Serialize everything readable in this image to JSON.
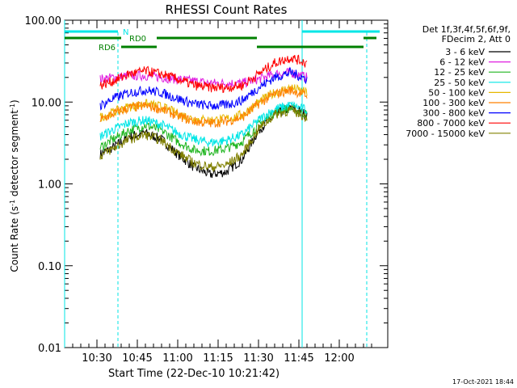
{
  "chart_data": {
    "type": "line",
    "title": "RHESSI Count Rates",
    "xlabel": "Start Time (22-Dec-10 10:21:42)",
    "ylabel_main": "Count Rate (s",
    "ylabel_sup1": "-1",
    "ylabel_mid": " detector segment",
    "ylabel_sup2": "-1",
    "ylabel_end": ")",
    "y_scale": "log",
    "ylim": [
      0.01,
      100
    ],
    "xlim_minutes": [
      10.3,
      12.3
    ],
    "x_ticks": [
      {
        "label": "10:30",
        "value": 10.5
      },
      {
        "label": "10:45",
        "value": 10.75
      },
      {
        "label": "11:00",
        "value": 11.0
      },
      {
        "label": "11:15",
        "value": 11.25
      },
      {
        "label": "11:30",
        "value": 11.5
      },
      {
        "label": "11:45",
        "value": 11.75
      },
      {
        "label": "12:00",
        "value": 12.0
      }
    ],
    "y_ticks": [
      {
        "label": "100.00",
        "value": 100
      },
      {
        "label": "10.00",
        "value": 10
      },
      {
        "label": "1.00",
        "value": 1
      },
      {
        "label": "0.10",
        "value": 0.1
      },
      {
        "label": "0.01",
        "value": 0.01
      }
    ],
    "legend_header_line1": "Det 1f,3f,4f,5f,6f,9f,",
    "legend_header_line2": "FDecim 2, Att 0",
    "legend_position": "right",
    "series": [
      {
        "name": "3 - 6 keV",
        "color": "#000000",
        "x": [
          10.52,
          10.6,
          10.7,
          10.8,
          10.9,
          11.0,
          11.1,
          11.2,
          11.3,
          11.4,
          11.5,
          11.6,
          11.7,
          11.8
        ],
        "values": [
          2.3,
          2.8,
          3.8,
          4.2,
          3.5,
          2.3,
          1.6,
          1.3,
          1.4,
          2.0,
          4.5,
          7.0,
          8.5,
          7.0
        ]
      },
      {
        "name": "6 - 12 keV",
        "color": "#e01ee0",
        "x": [
          10.52,
          10.6,
          10.7,
          10.8,
          10.9,
          11.0,
          11.1,
          11.2,
          11.3,
          11.4,
          11.5,
          11.6,
          11.7,
          11.8
        ],
        "values": [
          19,
          20,
          21,
          21,
          20,
          19,
          18,
          17,
          17,
          17,
          19,
          22,
          23,
          20
        ]
      },
      {
        "name": "12 - 25 keV",
        "color": "#1fb51f",
        "x": [
          10.52,
          10.6,
          10.7,
          10.8,
          10.9,
          11.0,
          11.1,
          11.2,
          11.3,
          11.4,
          11.5,
          11.6,
          11.7,
          11.8
        ],
        "values": [
          2.8,
          3.5,
          4.5,
          5.2,
          4.5,
          3.3,
          2.6,
          2.5,
          2.7,
          3.3,
          5.2,
          7.5,
          8.5,
          7.0
        ]
      },
      {
        "name": "25 - 50 keV",
        "color": "#00e6e6",
        "x": [
          10.52,
          10.6,
          10.7,
          10.8,
          10.9,
          11.0,
          11.1,
          11.2,
          11.3,
          11.4,
          11.5,
          11.6,
          11.7,
          11.8
        ],
        "values": [
          3.8,
          4.6,
          5.6,
          6.0,
          5.3,
          4.2,
          3.5,
          3.2,
          3.4,
          4.0,
          6.0,
          8.2,
          9.2,
          8.0
        ]
      },
      {
        "name": "50 - 100 keV",
        "color": "#e6b800",
        "x": [
          10.52,
          10.6,
          10.7,
          10.8,
          10.9,
          11.0,
          11.1,
          11.2,
          11.3,
          11.4,
          11.5,
          11.6,
          11.7,
          11.8
        ],
        "values": [
          6.5,
          7.5,
          8.8,
          9.5,
          8.8,
          7.2,
          6.2,
          6.0,
          6.2,
          7.0,
          10.0,
          13.0,
          15.0,
          13.0
        ]
      },
      {
        "name": "100 - 300 keV",
        "color": "#ff8000",
        "x": [
          10.52,
          10.6,
          10.7,
          10.8,
          10.9,
          11.0,
          11.1,
          11.2,
          11.3,
          11.4,
          11.5,
          11.6,
          11.7,
          11.8
        ],
        "values": [
          6.0,
          7.2,
          8.5,
          9.0,
          8.2,
          6.8,
          5.8,
          5.5,
          5.8,
          6.5,
          9.5,
          12.5,
          14.0,
          12.0
        ]
      },
      {
        "name": "300 - 800 keV",
        "color": "#0000ff",
        "x": [
          10.52,
          10.6,
          10.7,
          10.8,
          10.9,
          11.0,
          11.1,
          11.2,
          11.3,
          11.4,
          11.5,
          11.6,
          11.7,
          11.8
        ],
        "values": [
          9.0,
          11.0,
          13.0,
          14.0,
          13.0,
          11.0,
          9.5,
          9.0,
          9.2,
          10.5,
          15.0,
          20.0,
          23.0,
          19.0
        ]
      },
      {
        "name": "800 - 7000 keV",
        "color": "#ff0000",
        "x": [
          10.52,
          10.6,
          10.7,
          10.8,
          10.9,
          11.0,
          11.1,
          11.2,
          11.3,
          11.4,
          11.5,
          11.6,
          11.7,
          11.8
        ],
        "values": [
          16,
          18,
          22,
          24,
          22,
          19,
          16,
          15,
          15,
          16,
          22,
          30,
          35,
          30
        ]
      },
      {
        "name": "7000 - 15000 keV",
        "color": "#808000",
        "x": [
          10.52,
          10.6,
          10.7,
          10.8,
          10.9,
          11.0,
          11.1,
          11.2,
          11.3,
          11.4,
          11.5,
          11.6,
          11.7,
          11.8
        ],
        "values": [
          2.2,
          2.7,
          3.5,
          4.0,
          3.4,
          2.4,
          1.8,
          1.6,
          1.7,
          2.3,
          4.7,
          7.0,
          8.0,
          6.5
        ]
      }
    ],
    "annotations": {
      "night_label": "N",
      "rd0_label": "RD0",
      "rd6_label": "RD6"
    },
    "footer_date": "17-Oct-2021 18:44"
  }
}
